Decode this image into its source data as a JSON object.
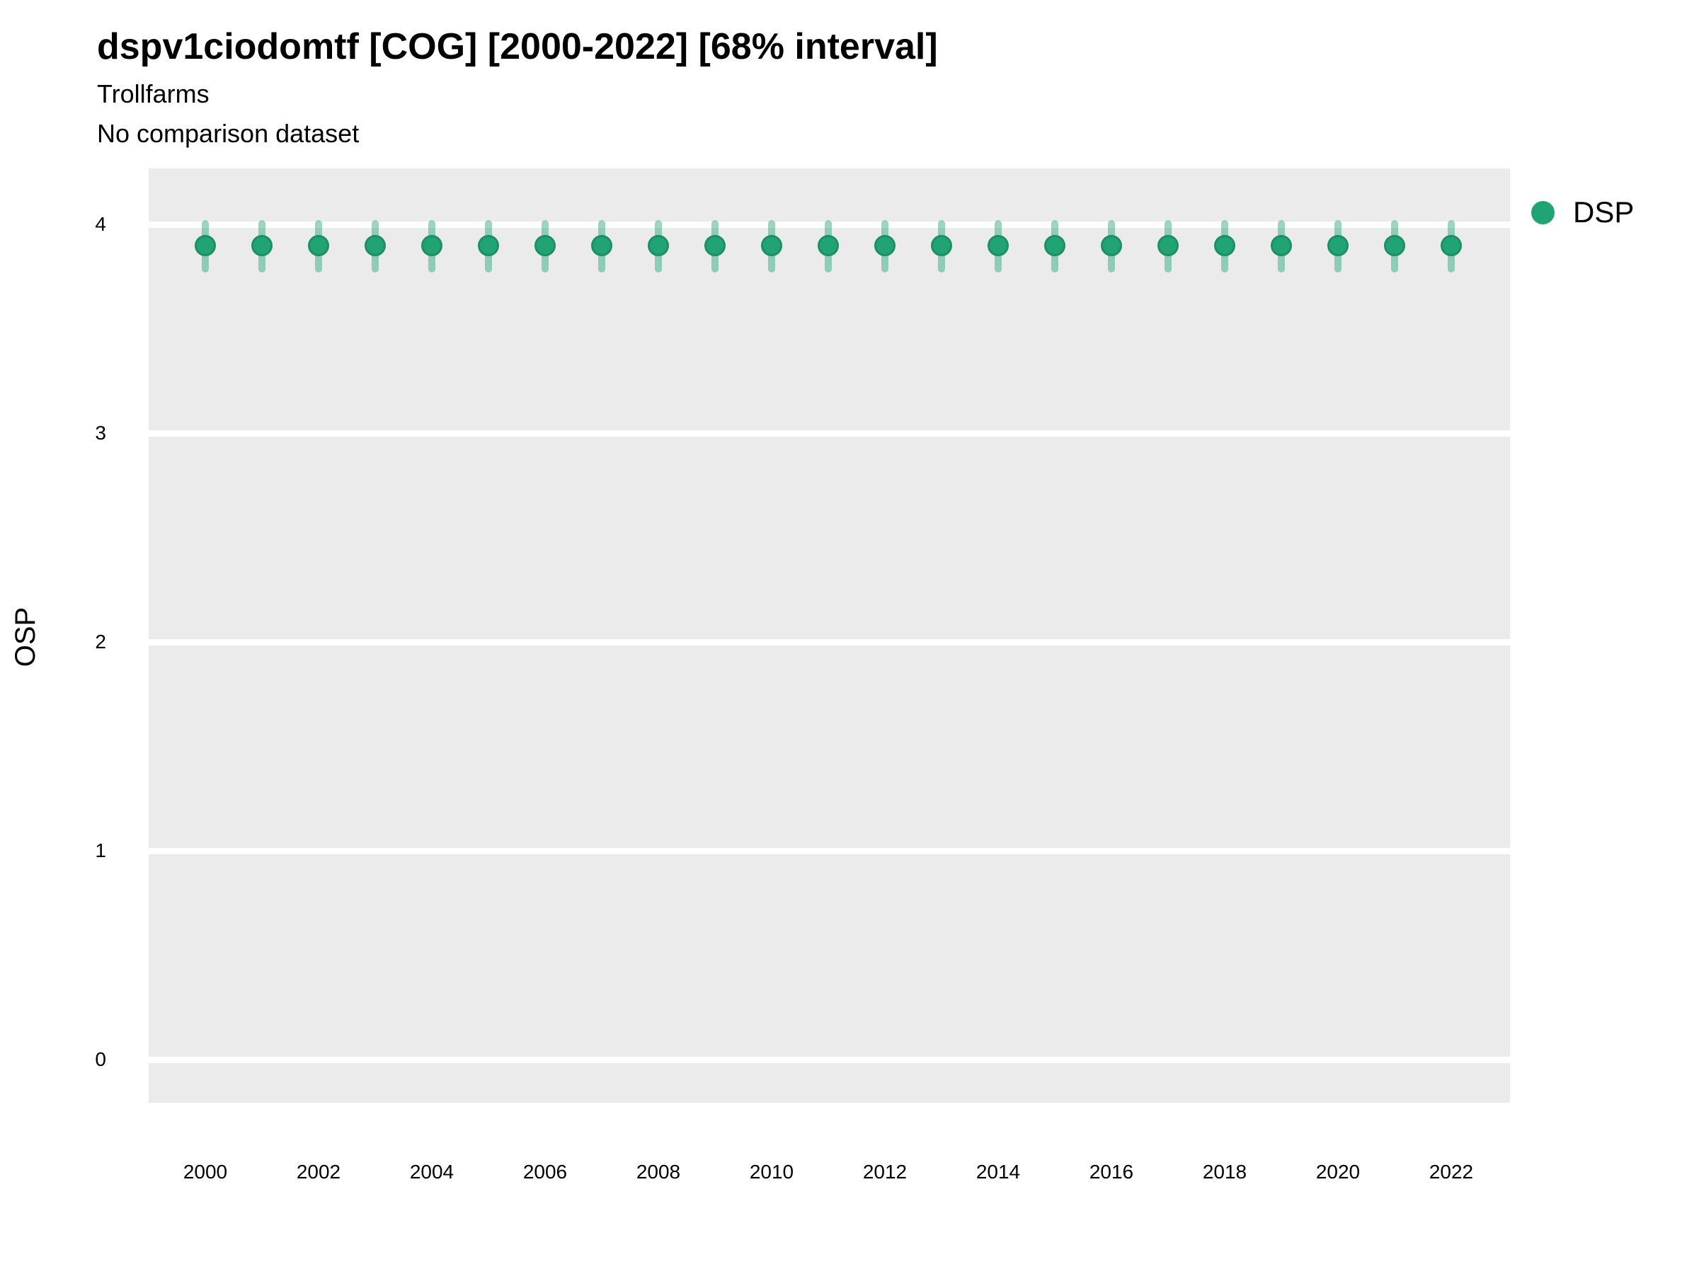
{
  "header": {
    "title": "dspv1ciodomtf [COG] [2000-2022] [68% interval]",
    "subtitle": "Trollfarms",
    "comparison_note": "No comparison dataset"
  },
  "axes": {
    "y_label": "OSP",
    "y_ticks": [
      4,
      3,
      2,
      1,
      0
    ],
    "x_ticks": [
      2000,
      2002,
      2004,
      2006,
      2008,
      2010,
      2012,
      2014,
      2016,
      2018,
      2020,
      2022
    ]
  },
  "legend": {
    "items": [
      {
        "label": "DSP",
        "color": "#21a474"
      }
    ]
  },
  "colors": {
    "point": "#21a474",
    "point_edge": "#1b8f65",
    "interval": "rgba(33,164,116,0.45)",
    "plot_background": "#ebebeb",
    "gridline": "#ffffff",
    "text": "#000000"
  },
  "chart_data": {
    "type": "scatter",
    "title": "dspv1ciodomtf [COG] [2000-2022] [68% interval]",
    "subtitle": "Trollfarms",
    "note": "No comparison dataset",
    "xlabel": "",
    "ylabel": "OSP",
    "legend_position": "right",
    "grid": "horizontal-major-only",
    "xlim": [
      1999,
      2023
    ],
    "ylim": [
      -0.22,
      4.27
    ],
    "x": [
      2000,
      2001,
      2002,
      2003,
      2004,
      2005,
      2006,
      2007,
      2008,
      2009,
      2010,
      2011,
      2012,
      2013,
      2014,
      2015,
      2016,
      2017,
      2018,
      2019,
      2020,
      2021,
      2022
    ],
    "series": [
      {
        "name": "DSP",
        "marker": "circle-with-vertical-interval-bar",
        "values": [
          3.9,
          3.9,
          3.9,
          3.9,
          3.9,
          3.9,
          3.9,
          3.9,
          3.9,
          3.9,
          3.9,
          3.9,
          3.9,
          3.9,
          3.9,
          3.9,
          3.9,
          3.9,
          3.9,
          3.9,
          3.9,
          3.9,
          3.9
        ],
        "interval_68_low": [
          3.77,
          3.77,
          3.77,
          3.77,
          3.77,
          3.77,
          3.77,
          3.77,
          3.77,
          3.77,
          3.77,
          3.77,
          3.77,
          3.77,
          3.77,
          3.77,
          3.77,
          3.77,
          3.77,
          3.77,
          3.77,
          3.77,
          3.77
        ],
        "interval_68_high": [
          4.02,
          4.02,
          4.02,
          4.02,
          4.02,
          4.02,
          4.02,
          4.02,
          4.02,
          4.02,
          4.02,
          4.02,
          4.02,
          4.02,
          4.02,
          4.02,
          4.02,
          4.02,
          4.02,
          4.02,
          4.02,
          4.02,
          4.02
        ]
      }
    ]
  }
}
